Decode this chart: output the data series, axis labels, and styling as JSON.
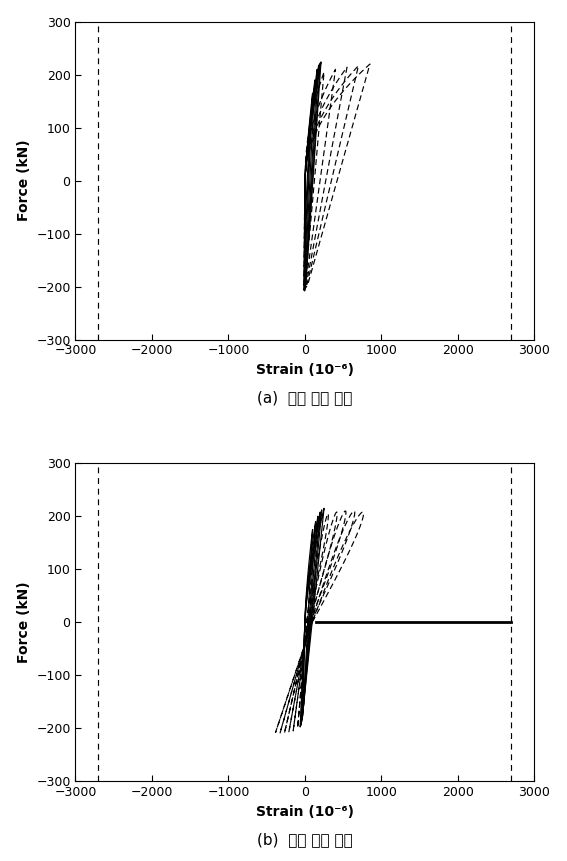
{
  "xlim": [
    -3000,
    3000
  ],
  "ylim": [
    -300,
    300
  ],
  "xticks": [
    -3000,
    -2000,
    -1000,
    0,
    1000,
    2000,
    3000
  ],
  "yticks": [
    -300,
    -200,
    -100,
    0,
    100,
    200,
    300
  ],
  "xlabel": "Strain (10⁻⁶)",
  "ylabel": "Force (kN)",
  "vline_x": [
    -2700,
    2700
  ],
  "caption_a": "(a)  좌측 단부 주근",
  "caption_b": "(b)  우측 단부 주근",
  "bg_color": "#ffffff",
  "plot_a_solid": [
    [
      60,
      90
    ],
    [
      80,
      130
    ],
    [
      100,
      165
    ],
    [
      130,
      190
    ],
    [
      160,
      210
    ],
    [
      180,
      218
    ],
    [
      200,
      222
    ],
    [
      210,
      224
    ]
  ],
  "plot_a_dashed": [
    [
      250,
      205
    ],
    [
      400,
      210
    ],
    [
      550,
      214
    ],
    [
      700,
      217
    ],
    [
      850,
      220
    ]
  ],
  "plot_b_solid": [
    [
      100,
      175
    ],
    [
      140,
      190
    ],
    [
      170,
      200
    ],
    [
      200,
      208
    ],
    [
      220,
      212
    ],
    [
      250,
      215
    ]
  ],
  "plot_b_dashed": [
    [
      300,
      200
    ],
    [
      480,
      205
    ],
    [
      660,
      208
    ],
    [
      840,
      210
    ],
    [
      1020,
      210
    ],
    [
      1200,
      208
    ]
  ],
  "hline_xstart": 150,
  "hline_xend": 2700
}
